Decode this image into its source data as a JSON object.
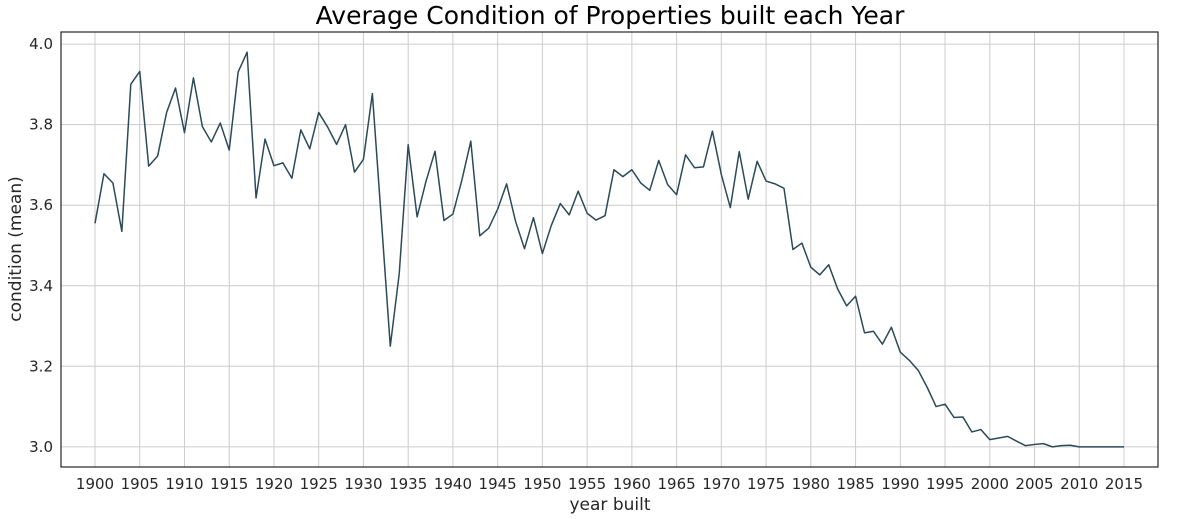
{
  "colors": {
    "line": "#2c4a57",
    "grid": "#cccccc",
    "frame": "#262626",
    "background": "#ffffff"
  },
  "chart_data": {
    "type": "line",
    "title": "Average Condition of Properties built each Year",
    "xlabel": "year built",
    "ylabel": "condition (mean)",
    "xlim": [
      1896.2,
      2018.8
    ],
    "ylim": [
      2.95,
      4.03
    ],
    "x_ticks": [
      1900,
      1905,
      1910,
      1915,
      1920,
      1925,
      1930,
      1935,
      1940,
      1945,
      1950,
      1955,
      1960,
      1965,
      1970,
      1975,
      1980,
      1985,
      1990,
      1995,
      2000,
      2005,
      2010,
      2015
    ],
    "y_ticks": [
      3.0,
      3.2,
      3.4,
      3.6,
      3.8,
      4.0
    ],
    "y_tick_labels": [
      "3.0",
      "3.2",
      "3.4",
      "3.6",
      "3.8",
      "4.0"
    ],
    "grid": true,
    "series": [
      {
        "x": [
          1900,
          1901,
          1902,
          1903,
          1904,
          1905,
          1906,
          1907,
          1908,
          1909,
          1910,
          1911,
          1912,
          1913,
          1914,
          1915,
          1916,
          1917,
          1918,
          1919,
          1920,
          1921,
          1922,
          1923,
          1924,
          1925,
          1926,
          1927,
          1928,
          1929,
          1930,
          1931,
          1932,
          1933,
          1934,
          1935,
          1936,
          1937,
          1938,
          1939,
          1940,
          1941,
          1942,
          1943,
          1944,
          1945,
          1946,
          1947,
          1948,
          1949,
          1950,
          1951,
          1952,
          1953,
          1954,
          1955,
          1956,
          1957,
          1958,
          1959,
          1960,
          1961,
          1962,
          1963,
          1964,
          1965,
          1966,
          1967,
          1968,
          1969,
          1970,
          1971,
          1972,
          1973,
          1974,
          1975,
          1976,
          1977,
          1978,
          1979,
          1980,
          1981,
          1982,
          1983,
          1984,
          1985,
          1986,
          1987,
          1988,
          1989,
          1990,
          1991,
          1992,
          1993,
          1994,
          1995,
          1996,
          1997,
          1998,
          1999,
          2000,
          2001,
          2002,
          2003,
          2004,
          2005,
          2006,
          2007,
          2008,
          2009,
          2010,
          2011,
          2012,
          2013,
          2014,
          2015
        ],
        "y": [
          3.555,
          3.678,
          3.655,
          3.535,
          3.9,
          3.932,
          3.697,
          3.722,
          3.83,
          3.891,
          3.78,
          3.916,
          3.795,
          3.757,
          3.804,
          3.737,
          3.931,
          3.98,
          3.618,
          3.764,
          3.698,
          3.705,
          3.667,
          3.787,
          3.74,
          3.83,
          3.794,
          3.751,
          3.8,
          3.682,
          3.714,
          3.877,
          3.565,
          3.25,
          3.43,
          3.75,
          3.571,
          3.66,
          3.734,
          3.562,
          3.578,
          3.662,
          3.759,
          3.524,
          3.543,
          3.59,
          3.653,
          3.56,
          3.492,
          3.569,
          3.48,
          3.55,
          3.604,
          3.576,
          3.635,
          3.58,
          3.563,
          3.574,
          3.688,
          3.671,
          3.688,
          3.655,
          3.637,
          3.711,
          3.651,
          3.626,
          3.725,
          3.693,
          3.695,
          3.784,
          3.676,
          3.594,
          3.733,
          3.615,
          3.709,
          3.66,
          3.653,
          3.642,
          3.49,
          3.506,
          3.446,
          3.427,
          3.452,
          3.392,
          3.35,
          3.374,
          3.283,
          3.287,
          3.255,
          3.297,
          3.235,
          3.215,
          3.19,
          3.148,
          3.1,
          3.106,
          3.073,
          3.074,
          3.037,
          3.043,
          3.018,
          3.022,
          3.026,
          3.014,
          3.003,
          3.006,
          3.008,
          3.0,
          3.003,
          3.004,
          3.0,
          3.0,
          3.0,
          3.0,
          3.0,
          3.0
        ]
      }
    ]
  }
}
